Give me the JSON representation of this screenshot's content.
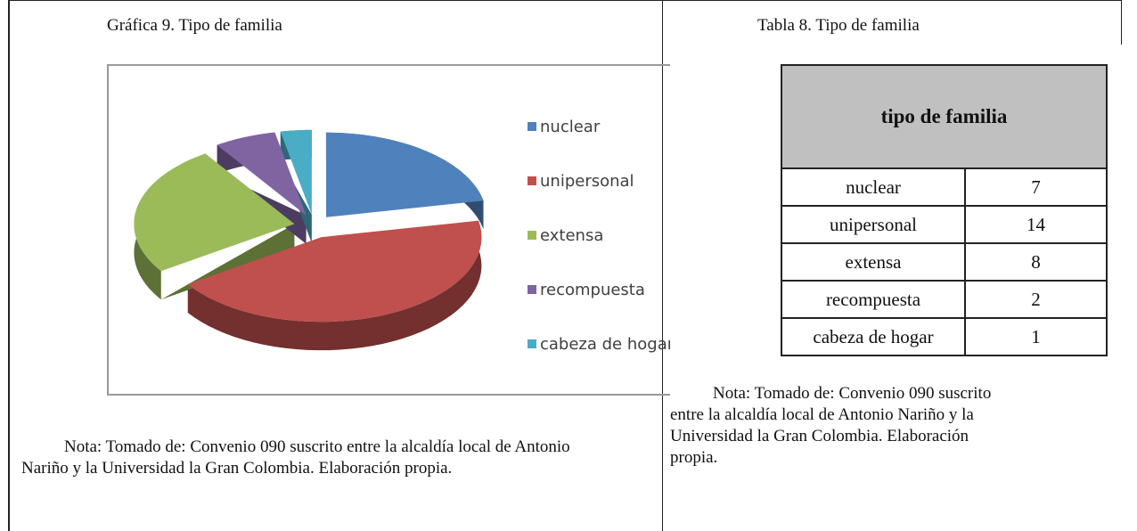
{
  "figure": {
    "title": "Gráfica 9. Tipo de familia",
    "chart_data": {
      "type": "pie",
      "categories": [
        "nuclear",
        "unipersonal",
        "extensa",
        "recompuesta",
        "cabeza de hogar"
      ],
      "values": [
        7,
        14,
        8,
        2,
        1
      ],
      "colors": [
        "#4f81bd",
        "#c0504d",
        "#9bbb59",
        "#8064a2",
        "#4bacc6"
      ],
      "exploded": true,
      "three_d": true
    },
    "note": "Nota: Tomado de: Convenio 090 suscrito entre la alcaldía local de Antonio Nariño y la Universidad la Gran Colombia. Elaboración propia."
  },
  "table_block": {
    "title": "Tabla 8. Tipo de familia",
    "table": {
      "header": "tipo de familia",
      "rows": [
        [
          "nuclear",
          7
        ],
        [
          "unipersonal",
          14
        ],
        [
          "extensa",
          8
        ],
        [
          "recompuesta",
          2
        ],
        [
          "cabeza de hogar",
          1
        ]
      ]
    },
    "note": "Nota: Tomado de: Convenio 090 suscrito entre la alcaldía local de Antonio Nariño y la Universidad la Gran Colombia. Elaboración propia."
  }
}
